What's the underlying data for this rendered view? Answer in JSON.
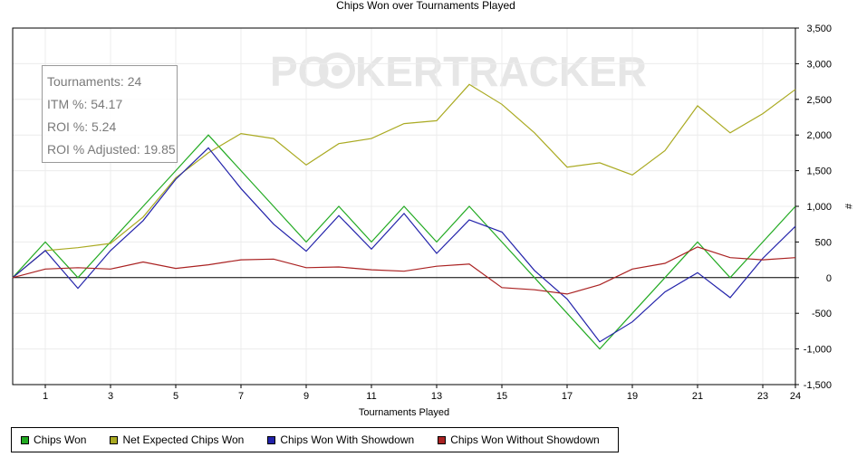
{
  "colors": {
    "chips_won": "#22aa22",
    "net_expected": "#aaaa22",
    "with_showdown": "#2222aa",
    "without_showdown": "#aa2222",
    "grid": "#ececec",
    "zero_line": "#000000"
  },
  "watermark": {
    "left": "PO",
    "right": "KERTRACKER"
  },
  "stats": {
    "tournaments": "Tournaments: 24",
    "itm": "ITM %: 54.17",
    "roi": "ROI %: 5.24",
    "roi_adjusted": "ROI % Adjusted: 19.85"
  },
  "chart_data": {
    "type": "line",
    "title": "Chips Won over Tournaments Played",
    "xlabel": "Tournaments Played",
    "ylabel": "#",
    "xlim": [
      0,
      24
    ],
    "ylim": [
      -1500,
      3500
    ],
    "x_ticks": [
      1,
      3,
      5,
      7,
      9,
      11,
      13,
      15,
      17,
      19,
      21,
      23,
      24
    ],
    "y_ticks": [
      -1500,
      -1000,
      -500,
      0,
      500,
      1000,
      1500,
      2000,
      2500,
      3000,
      3500
    ],
    "y_tick_labels": [
      "-1,500",
      "-1,000",
      "-500",
      "0",
      "500",
      "1,000",
      "1,500",
      "2,000",
      "2,500",
      "3,000",
      "3,500"
    ],
    "x": [
      0,
      1,
      2,
      3,
      4,
      5,
      6,
      7,
      8,
      9,
      10,
      11,
      12,
      13,
      14,
      15,
      16,
      17,
      18,
      19,
      20,
      21,
      22,
      23,
      24
    ],
    "grid": true,
    "legend_position": "bottom-left",
    "series": [
      {
        "name": "Chips Won",
        "color": "#22aa22",
        "values": [
          0,
          500,
          0,
          500,
          1000,
          1500,
          2000,
          1500,
          1000,
          500,
          1000,
          500,
          1000,
          500,
          1000,
          500,
          0,
          -500,
          -1000,
          -500,
          0,
          500,
          0,
          500,
          1000
        ]
      },
      {
        "name": "Net Expected Chips Won",
        "color": "#aaaa22",
        "values": [
          0,
          380,
          420,
          480,
          850,
          1400,
          1750,
          2020,
          1950,
          1580,
          1880,
          1950,
          2160,
          2200,
          2710,
          2430,
          2030,
          1550,
          1610,
          1440,
          1780,
          2410,
          2030,
          2300,
          2640
        ]
      },
      {
        "name": "Chips Won With Showdown",
        "color": "#2222aa",
        "values": [
          0,
          380,
          -150,
          380,
          800,
          1380,
          1820,
          1250,
          750,
          370,
          870,
          400,
          900,
          340,
          810,
          640,
          100,
          -300,
          -900,
          -620,
          -200,
          70,
          -280,
          270,
          720
        ]
      },
      {
        "name": "Chips Won Without Showdown",
        "color": "#aa2222",
        "values": [
          0,
          120,
          140,
          120,
          220,
          130,
          180,
          250,
          260,
          140,
          150,
          110,
          90,
          160,
          190,
          -140,
          -170,
          -230,
          -100,
          120,
          200,
          430,
          280,
          250,
          280
        ]
      }
    ]
  }
}
